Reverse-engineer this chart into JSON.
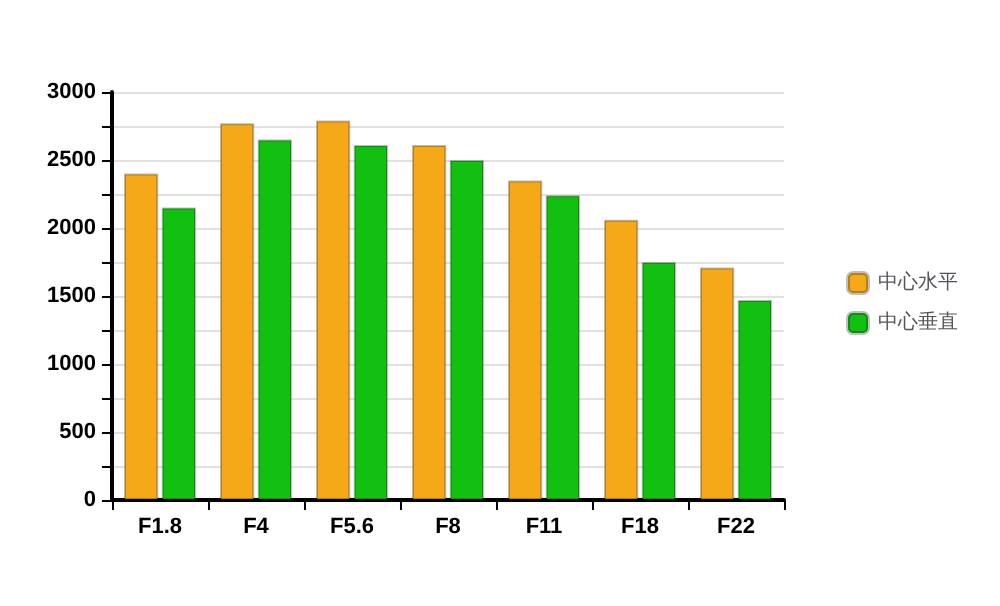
{
  "chart_data": {
    "type": "bar",
    "categories": [
      "F1.8",
      "F4",
      "F5.6",
      "F8",
      "F11",
      "F18",
      "F22"
    ],
    "series": [
      {
        "name": "中心水平",
        "color": "#f5a818",
        "values": [
          2400,
          2770,
          2790,
          2610,
          2350,
          2060,
          1710
        ]
      },
      {
        "name": "中心垂直",
        "color": "#12c012",
        "values": [
          2150,
          2650,
          2610,
          2500,
          2240,
          1750,
          1470
        ]
      }
    ],
    "ylim": [
      0,
      3000
    ],
    "yticks": [
      0,
      {
        "value": 250,
        "label": null
      },
      500,
      {
        "value": 750,
        "label": null
      },
      1000,
      {
        "value": 1250,
        "label": null
      },
      1500,
      {
        "value": 1750,
        "label": null
      },
      2000,
      {
        "value": 2250,
        "label": null
      },
      2500,
      {
        "value": 2750,
        "label": null
      },
      3000
    ],
    "grid": "y",
    "legend": "right"
  }
}
